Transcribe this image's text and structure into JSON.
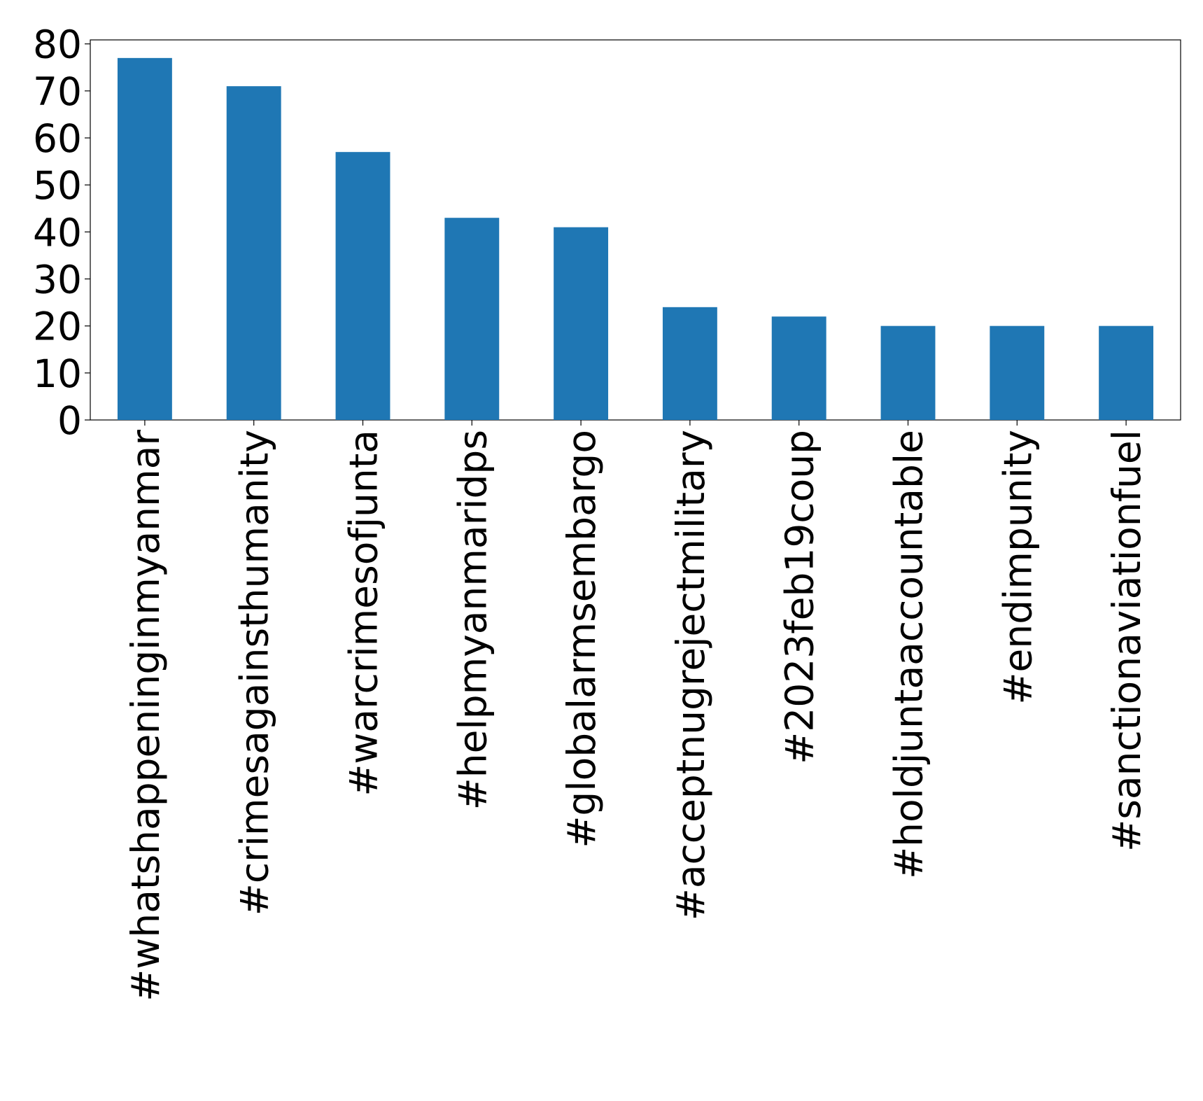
{
  "chart_data": {
    "type": "bar",
    "categories": [
      "#whatshappeninginmyanmar",
      "#crimesagainsthumanity",
      "#warcrimesofjunta",
      "#helpmyanmaridps",
      "#globalarmsembargo",
      "#acceptnugrejectmilitary",
      "#2023feb19coup",
      "#holdjuntaaccountable",
      "#endimpunity",
      "#sanctionaviationfuel"
    ],
    "values": [
      77,
      71,
      57,
      43,
      41,
      24,
      22,
      20,
      20,
      20
    ],
    "color": "#1f77b4",
    "ylim": [
      0,
      80.85
    ],
    "yticks": [
      0,
      10,
      20,
      30,
      40,
      50,
      60,
      70,
      80
    ],
    "grid": false
  }
}
